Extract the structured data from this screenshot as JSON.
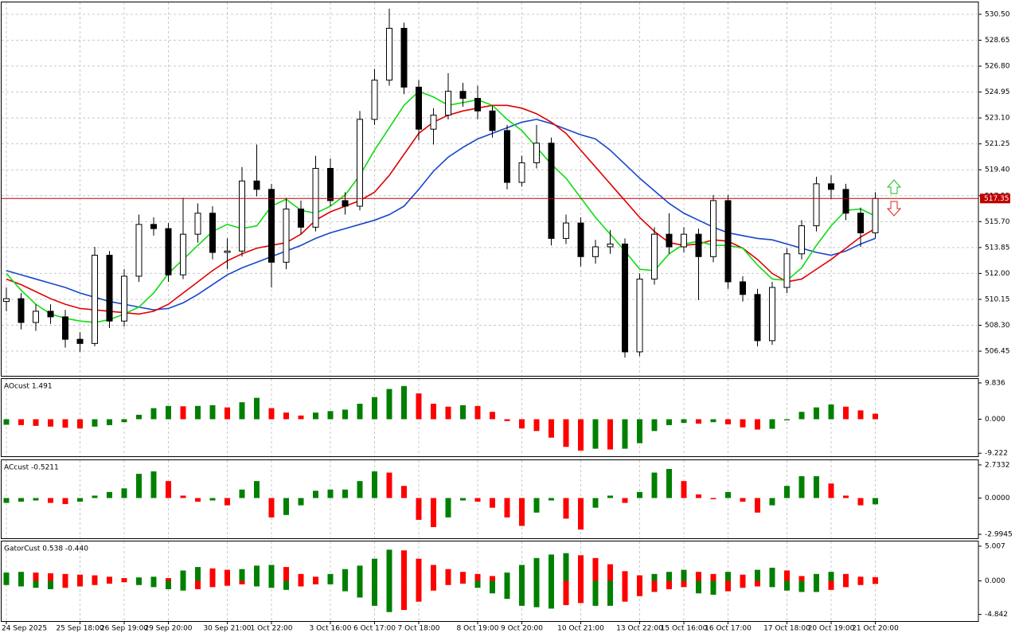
{
  "chart_data": [
    {
      "type": "candlestick",
      "categories": [
        "24 Sep 2025",
        null,
        null,
        null,
        null,
        "25 Sep 18:00",
        null,
        null,
        "26 Sep 19:00",
        null,
        null,
        "29 Sep 20:00",
        null,
        null,
        null,
        "30 Sep 21:00",
        null,
        null,
        "1 Oct 22:00",
        null,
        null,
        null,
        "3 Oct 16:00",
        null,
        null,
        "6 Oct 17:00",
        null,
        null,
        "7 Oct 18:00",
        null,
        null,
        null,
        "8 Oct 19:00",
        null,
        null,
        "9 Oct 20:00",
        null,
        null,
        null,
        "10 Oct 21:00",
        null,
        null,
        null,
        "13 Oct 22:00",
        null,
        null,
        "15 Oct 16:00",
        null,
        null,
        "16 Oct 17:00",
        null,
        null,
        null,
        "17 Oct 18:00",
        null,
        null,
        "20 Oct 19:00",
        null,
        null,
        "21 Oct 20:00"
      ],
      "open": [
        510.0,
        510.2,
        508.5,
        509.3,
        508.9,
        507.3,
        507.0,
        513.3,
        508.6,
        511.8,
        515.5,
        515.2,
        511.9,
        514.8,
        516.3,
        513.5,
        513.6,
        518.6,
        518.0,
        512.8,
        516.6,
        515.3,
        519.5,
        517.2,
        516.8,
        523.0,
        525.8,
        529.5,
        525.3,
        522.3,
        523.3,
        525.0,
        524.5,
        523.6,
        522.2,
        518.5,
        519.9,
        521.3,
        514.5,
        515.6,
        513.2,
        513.9,
        514.1,
        506.4,
        511.6,
        514.8,
        513.9,
        514.8,
        513.2,
        517.2,
        511.4,
        510.5,
        507.2,
        511.0,
        513.4,
        515.4,
        518.4,
        518.0,
        516.3,
        514.9
      ],
      "high": [
        511.0,
        510.6,
        509.8,
        509.8,
        509.4,
        507.8,
        513.9,
        513.6,
        512.3,
        516.2,
        516.0,
        515.6,
        517.4,
        517.0,
        516.8,
        514.5,
        519.6,
        521.2,
        518.4,
        517.4,
        517.2,
        520.4,
        520.2,
        517.8,
        523.6,
        526.6,
        530.9,
        529.9,
        525.8,
        523.8,
        526.3,
        525.6,
        525.4,
        524.0,
        522.6,
        520.4,
        522.6,
        521.7,
        516.2,
        516.0,
        514.4,
        515.1,
        514.5,
        512.0,
        515.3,
        516.3,
        515.3,
        515.2,
        517.6,
        517.6,
        511.8,
        510.9,
        511.4,
        513.8,
        515.8,
        518.9,
        519.0,
        518.4,
        516.7,
        517.8
      ],
      "low": [
        509.3,
        508.0,
        507.9,
        508.4,
        506.7,
        506.4,
        506.8,
        508.1,
        508.2,
        511.4,
        514.7,
        511.4,
        511.6,
        514.2,
        513.0,
        512.3,
        513.2,
        517.5,
        511.0,
        512.3,
        514.8,
        515.0,
        516.8,
        516.2,
        516.5,
        522.6,
        525.4,
        524.8,
        521.5,
        521.2,
        523.0,
        523.9,
        523.0,
        521.7,
        518.0,
        518.2,
        519.5,
        514.0,
        514.1,
        512.5,
        512.7,
        513.4,
        506.0,
        506.1,
        511.2,
        513.4,
        513.5,
        510.1,
        512.8,
        510.9,
        510.0,
        506.8,
        506.9,
        510.6,
        513.0,
        515.0,
        517.3,
        515.8,
        513.9,
        514.5
      ],
      "close": [
        510.2,
        508.5,
        509.3,
        508.9,
        507.3,
        507.0,
        513.3,
        508.6,
        511.8,
        515.5,
        515.2,
        511.9,
        514.8,
        516.3,
        513.5,
        513.6,
        518.6,
        518.0,
        512.8,
        516.6,
        515.3,
        519.5,
        517.2,
        516.8,
        523.0,
        525.8,
        529.5,
        525.3,
        522.3,
        523.3,
        525.0,
        524.5,
        523.6,
        522.2,
        518.5,
        519.9,
        521.3,
        514.5,
        515.6,
        513.2,
        513.9,
        514.1,
        506.4,
        511.6,
        514.8,
        513.9,
        514.8,
        513.2,
        517.2,
        511.4,
        510.5,
        507.2,
        511.0,
        513.4,
        515.4,
        518.4,
        518.0,
        516.3,
        514.9,
        517.35
      ],
      "up_color": "#ffffff",
      "down_color": "#000000",
      "lines": [
        {
          "color": "#1846c8",
          "values": [
            512.2,
            511.9,
            511.6,
            511.3,
            511.0,
            510.6,
            510.3,
            510.0,
            509.8,
            509.6,
            509.4,
            509.5,
            509.9,
            510.5,
            511.2,
            511.9,
            512.4,
            512.8,
            513.2,
            513.6,
            514.0,
            514.5,
            514.9,
            515.2,
            515.5,
            515.8,
            516.2,
            516.8,
            518.0,
            519.3,
            520.3,
            521.0,
            521.6,
            522.0,
            522.4,
            522.8,
            523.0,
            522.7,
            522.3,
            521.9,
            521.6,
            520.8,
            519.8,
            518.8,
            517.9,
            517.0,
            516.3,
            515.8,
            515.3,
            514.9,
            514.7,
            514.5,
            514.4,
            514.1,
            513.8,
            513.5,
            513.3,
            513.6,
            514.1,
            514.5
          ]
        },
        {
          "color": "#e00000",
          "values": [
            511.6,
            511.2,
            510.7,
            510.2,
            509.8,
            509.5,
            509.4,
            509.3,
            509.2,
            509.1,
            509.3,
            509.8,
            510.6,
            511.4,
            512.2,
            512.9,
            513.4,
            513.8,
            514.0,
            514.2,
            514.8,
            515.8,
            516.4,
            516.8,
            517.2,
            517.8,
            519.0,
            520.5,
            522.0,
            522.8,
            523.3,
            523.6,
            523.8,
            524.0,
            524.0,
            523.8,
            523.4,
            522.8,
            522.0,
            520.8,
            519.6,
            518.4,
            517.2,
            516.0,
            515.0,
            514.2,
            514.0,
            514.1,
            514.4,
            514.3,
            513.8,
            513.0,
            512.0,
            511.4,
            511.6,
            512.3,
            513.0,
            513.8,
            514.6,
            515.2
          ]
        },
        {
          "color": "#10dc10",
          "values": [
            512.0,
            510.8,
            509.8,
            509.1,
            508.8,
            508.6,
            508.5,
            508.7,
            509.1,
            509.6,
            510.6,
            512.0,
            513.0,
            514.0,
            515.0,
            515.5,
            515.2,
            515.4,
            516.8,
            517.3,
            516.5,
            516.3,
            516.8,
            517.6,
            519.0,
            520.8,
            522.4,
            524.0,
            525.0,
            524.6,
            524.0,
            524.2,
            524.4,
            524.0,
            523.0,
            522.2,
            521.0,
            519.8,
            518.8,
            517.4,
            516.0,
            514.8,
            513.6,
            512.3,
            512.2,
            513.4,
            514.1,
            514.3,
            514.0,
            514.0,
            513.8,
            512.6,
            511.6,
            511.5,
            512.4,
            514.0,
            515.4,
            516.5,
            516.6,
            516.1
          ]
        }
      ],
      "current_price": 517.35,
      "current_price_color": "#c00000",
      "ylim": [
        504.69,
        531.35
      ],
      "yticks": [
        {
          "value": 530.5,
          "label": "530.50"
        },
        528.65,
        {
          "value": 526.8,
          "label": "526.80"
        },
        524.95,
        {
          "value": 523.1,
          "label": "523.10"
        },
        521.25,
        {
          "value": 519.4,
          "label": "519.40"
        },
        517.55,
        {
          "value": 515.7,
          "label": "515.70"
        },
        513.85,
        {
          "value": 512,
          "label": "512.00"
        },
        510.15,
        {
          "value": 508.3,
          "label": "508.30"
        },
        506.45
      ],
      "grid": true
    },
    {
      "type": "bar",
      "title": "AOcust 1.491",
      "values": [
        -1.5,
        -1.6,
        -1.8,
        -2.0,
        -2.3,
        -2.5,
        -2.0,
        -1.6,
        -0.8,
        1.2,
        3.0,
        3.6,
        3.5,
        3.6,
        3.8,
        3.2,
        4.6,
        5.8,
        3.0,
        1.8,
        1.0,
        1.8,
        2.2,
        2.6,
        4.2,
        6.0,
        8.2,
        9.0,
        7.0,
        4.2,
        3.4,
        3.8,
        3.6,
        2.0,
        -0.5,
        -2.5,
        -3.2,
        -5.0,
        -7.5,
        -8.5,
        -8.0,
        -8.2,
        -8.0,
        -6.5,
        -3.2,
        -1.6,
        -1.0,
        -1.2,
        -0.8,
        -1.4,
        -2.2,
        -2.8,
        -2.6,
        -0.3,
        2.0,
        3.2,
        4.0,
        3.4,
        2.4,
        1.491
      ],
      "up_color": "#008000",
      "down_color": "#ff0000",
      "ylim": [
        -10.04,
        10.9
      ],
      "yticks": [
        9.836,
        {
          "value": 0,
          "label": "0.000"
        },
        -9.222
      ]
    },
    {
      "type": "bar",
      "title": "ACcust -0.5211",
      "values": [
        -0.4,
        -0.3,
        -0.2,
        -0.4,
        -0.5,
        -0.3,
        0.2,
        0.5,
        0.8,
        2.0,
        2.2,
        1.4,
        0.2,
        -0.3,
        -0.2,
        -0.6,
        0.7,
        1.4,
        -1.6,
        -1.4,
        -0.6,
        0.6,
        0.7,
        0.7,
        1.4,
        2.2,
        2.1,
        1.0,
        -1.8,
        -2.4,
        -1.6,
        -0.2,
        -0.3,
        -0.8,
        -1.6,
        -2.3,
        -1.2,
        -0.2,
        -1.7,
        -2.6,
        -0.8,
        0.2,
        -0.4,
        0.5,
        2.1,
        2.4,
        1.4,
        0.3,
        -0.1,
        0.5,
        -0.3,
        -1.2,
        -0.6,
        1.0,
        1.8,
        1.8,
        1.2,
        0.2,
        -0.6,
        -0.5211
      ],
      "up_color": "#008000",
      "down_color": "#ff0000",
      "ylim": [
        -3.32,
        3.12
      ],
      "yticks": [
        2.7332,
        {
          "value": 0,
          "label": "0.0000"
        },
        -2.9945
      ]
    },
    {
      "type": "gator",
      "title": "GatorCust 0.538 -0.440",
      "upper": [
        1.2,
        1.3,
        1.2,
        1.1,
        1.0,
        0.9,
        0.8,
        0.6,
        0.4,
        0.5,
        0.6,
        0.4,
        1.5,
        2.0,
        1.8,
        1.6,
        1.7,
        2.2,
        2.3,
        2.0,
        1.0,
        0.6,
        1.0,
        1.7,
        2.2,
        3.2,
        4.5,
        4.4,
        3.2,
        2.3,
        1.7,
        1.3,
        1.0,
        0.7,
        1.2,
        2.3,
        3.3,
        3.8,
        4.0,
        3.7,
        3.3,
        2.4,
        1.4,
        0.8,
        1.0,
        1.3,
        1.6,
        1.3,
        1.0,
        1.3,
        0.9,
        1.6,
        1.9,
        1.5,
        0.7,
        1.0,
        1.3,
        1.0,
        0.6,
        0.538
      ],
      "lower": [
        -0.6,
        -0.8,
        -1.0,
        -1.2,
        -1.0,
        -0.8,
        -0.6,
        -0.4,
        -0.2,
        -0.6,
        -0.9,
        -1.2,
        -1.4,
        -1.2,
        -0.9,
        -0.7,
        -0.5,
        -0.8,
        -1.0,
        -1.3,
        -0.8,
        -0.5,
        -0.5,
        -1.5,
        -2.4,
        -3.6,
        -4.5,
        -4.2,
        -3.0,
        -1.4,
        -0.6,
        -0.4,
        -1.0,
        -1.8,
        -2.6,
        -3.6,
        -3.8,
        -4.0,
        -3.5,
        -3.2,
        -3.6,
        -3.6,
        -3.0,
        -2.2,
        -1.6,
        -1.2,
        -0.9,
        -1.8,
        -2.0,
        -1.5,
        -1.0,
        -0.8,
        -0.9,
        -1.4,
        -1.6,
        -1.6,
        -1.3,
        -0.9,
        -0.6,
        -0.44
      ],
      "up_color": "#008000",
      "down_color": "#ff0000",
      "ylim": [
        -5.8,
        5.69
      ],
      "yticks": [
        5.007,
        {
          "value": 0,
          "label": "0.000"
        },
        -4.842
      ]
    }
  ]
}
